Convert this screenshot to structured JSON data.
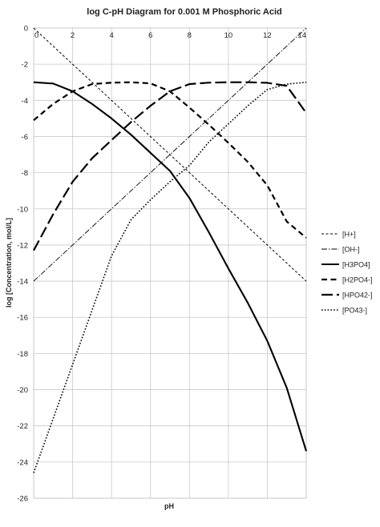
{
  "chart_data": {
    "type": "line",
    "title": "log C-pH Diagram for 0.001 M Phosphoric Acid",
    "xlabel": "pH",
    "ylabel": "log [Concentration, mol/L]",
    "xlim": [
      0,
      14
    ],
    "ylim": [
      -26,
      0
    ],
    "xticks": [
      0,
      2,
      4,
      6,
      8,
      10,
      12,
      14
    ],
    "yticks": [
      0,
      -2,
      -4,
      -6,
      -8,
      -10,
      -12,
      -14,
      -16,
      -18,
      -20,
      -22,
      -24,
      -26
    ],
    "grid": true,
    "legend_position": "right",
    "x": [
      0,
      1,
      2,
      3,
      4,
      5,
      6,
      7,
      8,
      9,
      10,
      11,
      12,
      13,
      14
    ],
    "series": [
      {
        "name": "[H+]",
        "style": "short-dash",
        "values": [
          0,
          -1,
          -2,
          -3,
          -4,
          -5,
          -6,
          -7,
          -8,
          -9,
          -10,
          -11,
          -12,
          -13,
          -14
        ]
      },
      {
        "name": "[OH-]",
        "style": "dash-dot",
        "values": [
          -14,
          -13,
          -12,
          -11,
          -10,
          -9,
          -8,
          -7,
          -6,
          -5,
          -4,
          -3,
          -2,
          -1,
          0
        ]
      },
      {
        "name": "[H3PO4]",
        "style": "solid",
        "values": [
          -3.0,
          -3.07,
          -3.5,
          -4.2,
          -5.0,
          -5.9,
          -6.9,
          -7.9,
          -9.4,
          -11.3,
          -13.3,
          -15.2,
          -17.3,
          -19.9,
          -23.4
        ]
      },
      {
        "name": "[H2PO4-]",
        "style": "dash",
        "values": [
          -5.1,
          -4.2,
          -3.5,
          -3.1,
          -3.02,
          -3.0,
          -3.06,
          -3.5,
          -4.4,
          -5.35,
          -6.35,
          -7.4,
          -8.7,
          -10.7,
          -11.6
        ]
      },
      {
        "name": "[HPO42-]",
        "style": "long-dash",
        "values": [
          -12.3,
          -10.3,
          -8.5,
          -7.2,
          -6.2,
          -5.2,
          -4.3,
          -3.5,
          -3.1,
          -3.02,
          -3.0,
          -3.0,
          -3.03,
          -3.2,
          -4.7
        ]
      },
      {
        "name": "[PO43-]",
        "style": "dot",
        "values": [
          -24.6,
          -21.6,
          -18.6,
          -15.6,
          -12.6,
          -10.6,
          -9.5,
          -8.5,
          -7.6,
          -6.3,
          -5.3,
          -4.3,
          -3.4,
          -3.1,
          -3.0
        ]
      }
    ]
  }
}
